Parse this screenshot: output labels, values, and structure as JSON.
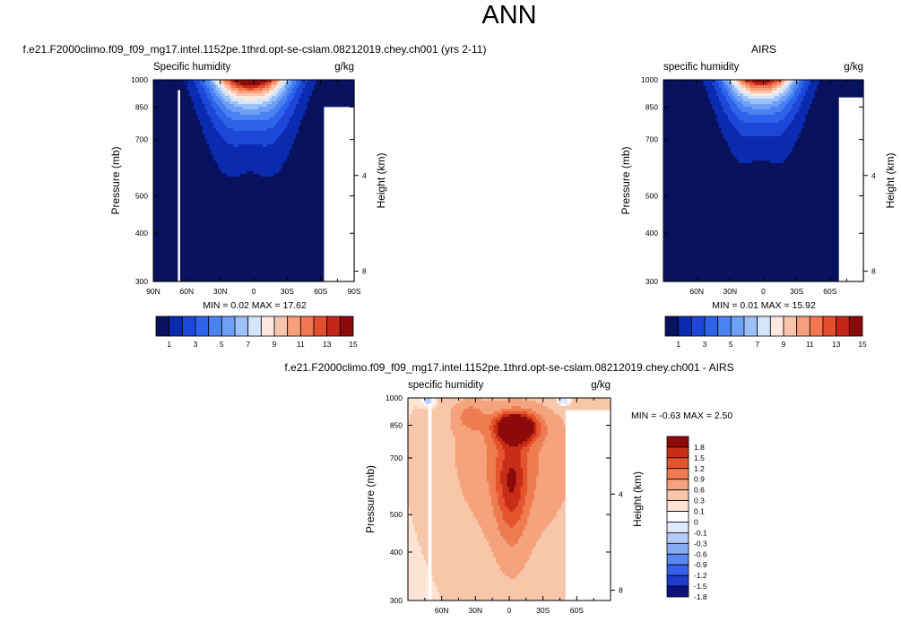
{
  "figure_title": "ANN",
  "palette": {
    "abs": [
      "#08115e",
      "#0a2bb0",
      "#1c47d8",
      "#2e64ea",
      "#4a82f2",
      "#6ea0f6",
      "#9cc0f8",
      "#d4e6fb",
      "#fde9df",
      "#f9c4ac",
      "#f79e7c",
      "#f2764f",
      "#e34e2d",
      "#c2271a",
      "#8c0a0a"
    ],
    "diff": [
      "#10127c",
      "#1c3ccc",
      "#3460e8",
      "#5a86f0",
      "#88aaf4",
      "#b4cbf8",
      "#dfe9fb",
      "#ffffff",
      "#fde4d4",
      "#f8c6a8",
      "#f4a37c",
      "#ef7c50",
      "#e5542d",
      "#c82d17",
      "#8c0a0a"
    ]
  },
  "chart_data": [
    {
      "type": "heatmap",
      "title": "f.e21.F2000climo.f09_f09_mg17.intel.1152pe.1thrd.opt-se-cslam.08212019.chey.ch001 (yrs 2-11)",
      "left_label": "Specific humidity",
      "right_label": "g/kg",
      "ylabel": "Pressure (mb)",
      "ylabel_right": "Height (km)",
      "xlim": [
        90,
        -90
      ],
      "ylim": [
        1000,
        300
      ],
      "x_ticks": [
        {
          "v": 90,
          "label": "90N"
        },
        {
          "v": 60,
          "label": "60N"
        },
        {
          "v": 30,
          "label": "30N"
        },
        {
          "v": 0,
          "label": "0"
        },
        {
          "v": -30,
          "label": "30S"
        },
        {
          "v": -60,
          "label": "60S"
        },
        {
          "v": -90,
          "label": "90S"
        }
      ],
      "y_ticks": [
        300,
        400,
        500,
        700,
        850,
        1000
      ],
      "height_ticks": [
        {
          "km": 8,
          "label": "8"
        },
        {
          "km": 4,
          "label": "4"
        }
      ],
      "stats": {
        "min_label": "MIN =",
        "min": "0.02",
        "max_label": "MAX =",
        "max": "17.62"
      },
      "levels": [
        1,
        2,
        3,
        4,
        5,
        6,
        7,
        8,
        9,
        10,
        11,
        12,
        13,
        14
      ],
      "colorbar_labels": [
        "1",
        "3",
        "5",
        "7",
        "9",
        "11",
        "13",
        "15"
      ]
    },
    {
      "type": "heatmap",
      "title": "AIRS",
      "left_label": "specific humidity",
      "right_label": "g/kg",
      "ylabel": "Pressure (mb)",
      "ylabel_right": "Height (km)",
      "xlim": [
        90,
        -90
      ],
      "ylim": [
        1000,
        300
      ],
      "x_ticks": [
        {
          "v": 60,
          "label": "60N"
        },
        {
          "v": 30,
          "label": "30N"
        },
        {
          "v": 0,
          "label": "0"
        },
        {
          "v": -30,
          "label": "30S"
        },
        {
          "v": -60,
          "label": "60S"
        }
      ],
      "y_ticks": [
        300,
        400,
        500,
        700,
        850,
        1000
      ],
      "height_ticks": [
        {
          "km": 8,
          "label": "8"
        },
        {
          "km": 4,
          "label": "4"
        }
      ],
      "stats": {
        "min_label": "MIN =",
        "min": "0.01",
        "max_label": "MAX =",
        "max": "15.92"
      },
      "levels": [
        1,
        2,
        3,
        4,
        5,
        6,
        7,
        8,
        9,
        10,
        11,
        12,
        13,
        14
      ],
      "colorbar_labels": [
        "1",
        "3",
        "5",
        "7",
        "9",
        "11",
        "13",
        "15"
      ]
    },
    {
      "type": "heatmap",
      "title": "f.e21.F2000climo.f09_f09_mg17.intel.1152pe.1thrd.opt-se-cslam.08212019.chey.ch001 - AIRS",
      "left_label": "specific humidity",
      "right_label": "g/kg",
      "ylabel": "Pressure (mb)",
      "ylabel_right": "Height (km)",
      "xlim": [
        90,
        -90
      ],
      "ylim": [
        1000,
        300
      ],
      "x_ticks": [
        {
          "v": 60,
          "label": "60N"
        },
        {
          "v": 30,
          "label": "30N"
        },
        {
          "v": 0,
          "label": "0"
        },
        {
          "v": -30,
          "label": "30S"
        },
        {
          "v": -60,
          "label": "60S"
        }
      ],
      "y_ticks": [
        300,
        400,
        500,
        700,
        850,
        1000
      ],
      "height_ticks": [
        {
          "km": 8,
          "label": "8"
        },
        {
          "km": 4,
          "label": "4"
        }
      ],
      "stats": {
        "min_label": "MIN =",
        "min": "-0.63",
        "max_label": "MAX =",
        "max": "2.50"
      },
      "levels": [
        -1.8,
        -1.5,
        -1.2,
        -0.9,
        -0.6,
        -0.3,
        -0.1,
        0,
        0.1,
        0.3,
        0.6,
        0.9,
        1.2,
        1.5,
        1.8
      ],
      "colorbar_labels": [
        "1.8",
        "1.5",
        "1.2",
        "0.9",
        "0.6",
        "0.3",
        "0.1",
        "0",
        "-0.1",
        "-0.3",
        "-0.6",
        "-0.9",
        "-1.2",
        "-1.5",
        "-1.8"
      ]
    }
  ]
}
